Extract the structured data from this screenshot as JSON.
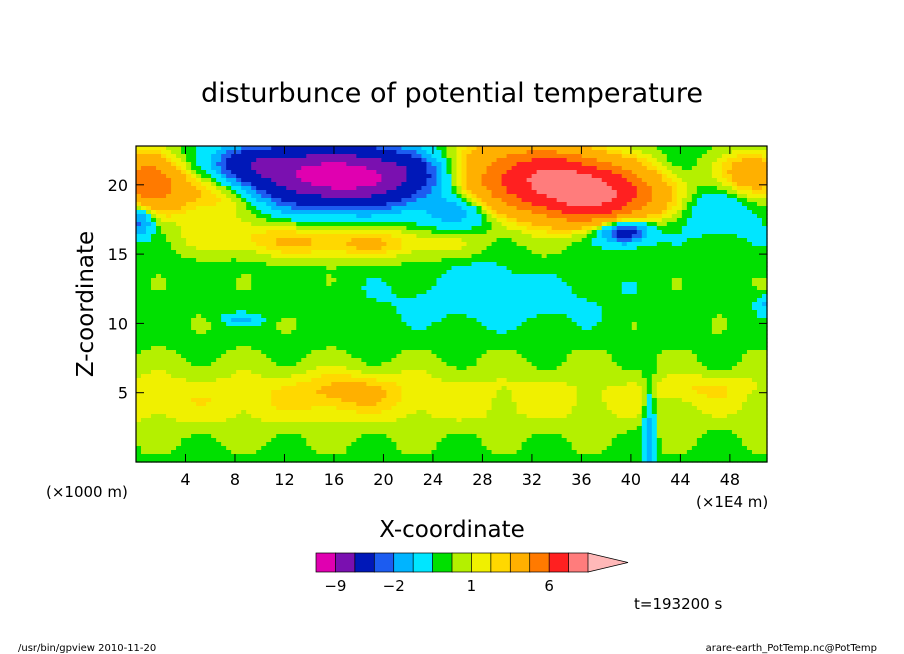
{
  "chart_data": {
    "type": "heatmap",
    "title": "disturbunce of potential temperature",
    "xlabel": "X-coordinate",
    "ylabel": "Z-coordinate",
    "x_unit_left": "(×1000 m)",
    "x_unit_right": "(×1E4 m)",
    "xlim": [
      0,
      51
    ],
    "ylim": [
      0,
      22.8
    ],
    "x_ticks": [
      4,
      8,
      12,
      16,
      20,
      24,
      28,
      32,
      36,
      40,
      44,
      48
    ],
    "y_ticks": [
      5,
      10,
      15,
      20
    ],
    "time_label": "t=193200 s",
    "colorbar": {
      "levels": [
        -16,
        -9,
        -6,
        -3,
        -2,
        -1,
        0,
        0.5,
        1,
        1.5,
        2,
        4,
        6,
        9,
        12,
        16
      ],
      "colors": [
        "#e000b0",
        "#7a10b0",
        "#0018b8",
        "#1c5cf0",
        "#00b4ff",
        "#00e6ff",
        "#00e000",
        "#b4f000",
        "#f0f000",
        "#ffd800",
        "#ffb000",
        "#ff7a00",
        "#ff2020",
        "#ff7c7c",
        "#ffb8b8"
      ],
      "labels": [
        {
          "value": -9,
          "text": "−9"
        },
        {
          "value": -2,
          "text": "−2"
        },
        {
          "value": 1,
          "text": "1"
        },
        {
          "value": 6,
          "text": "6"
        }
      ]
    },
    "field": {
      "background": 0.3,
      "blobs": [
        {
          "x": 0,
          "z": 4.5,
          "sx": 60,
          "sz": 1.8,
          "a": 1.0
        },
        {
          "x": 17,
          "z": 5.1,
          "sx": 3,
          "sz": 0.9,
          "a": 1.2
        },
        {
          "x": 46,
          "z": 5.4,
          "sx": 2.5,
          "sz": 0.6,
          "a": 0.6
        },
        {
          "x": 17,
          "z": 15.8,
          "sx": 6,
          "sz": 0.8,
          "a": 1.8
        },
        {
          "x": 8,
          "z": 16.5,
          "sx": 4,
          "sz": 0.9,
          "a": 0.8
        },
        {
          "x": 1,
          "z": 20.3,
          "sx": 1.8,
          "sz": 1.4,
          "a": 5.0
        },
        {
          "x": 6,
          "z": 19.4,
          "sx": 3,
          "sz": 1.1,
          "a": 2.5
        },
        {
          "x": 30,
          "z": 20.5,
          "sx": 5,
          "sz": 1.8,
          "a": 5.0
        },
        {
          "x": 37,
          "z": 19.2,
          "sx": 3.5,
          "sz": 1.3,
          "a": 8.5
        },
        {
          "x": 34,
          "z": 20.8,
          "sx": 3,
          "sz": 1.1,
          "a": 3.5
        },
        {
          "x": 50,
          "z": 20.8,
          "sx": 1.8,
          "sz": 1.1,
          "a": 3.0
        },
        {
          "x": 17,
          "z": 20.6,
          "sx": 5.5,
          "sz": 1.4,
          "a": -11.5
        },
        {
          "x": 10,
          "z": 21.6,
          "sx": 2.5,
          "sz": 0.8,
          "a": -3.0
        },
        {
          "x": 29,
          "z": 11.6,
          "sx": 6,
          "sz": 1.2,
          "a": -0.8
        },
        {
          "x": 28,
          "z": 13.5,
          "sx": 1.8,
          "sz": 0.8,
          "a": -0.6
        },
        {
          "x": 26,
          "z": 18.0,
          "sx": 2.2,
          "sz": 0.9,
          "a": -2.5
        },
        {
          "x": 39.5,
          "z": 16.6,
          "sx": 1.4,
          "sz": 0.6,
          "a": -5.0
        },
        {
          "x": 47,
          "z": 18.0,
          "sx": 2.5,
          "sz": 1.2,
          "a": -1.2
        },
        {
          "x": 0.3,
          "z": 17.4,
          "sx": 0.8,
          "sz": 0.8,
          "a": -3.0
        },
        {
          "x": 41.5,
          "z": 2.3,
          "sx": 0.35,
          "sz": 2.5,
          "a": -2.0
        },
        {
          "x": 8.5,
          "z": 10.3,
          "sx": 1.0,
          "sz": 0.25,
          "a": -1.5
        },
        {
          "x": 50.8,
          "z": 11.4,
          "sx": 0.5,
          "sz": 0.4,
          "a": -1.5
        }
      ]
    }
  },
  "footer": {
    "left": "/usr/bin/gpview  2010-11-20",
    "right": "arare-earth_PotTemp.nc@PotTemp"
  }
}
